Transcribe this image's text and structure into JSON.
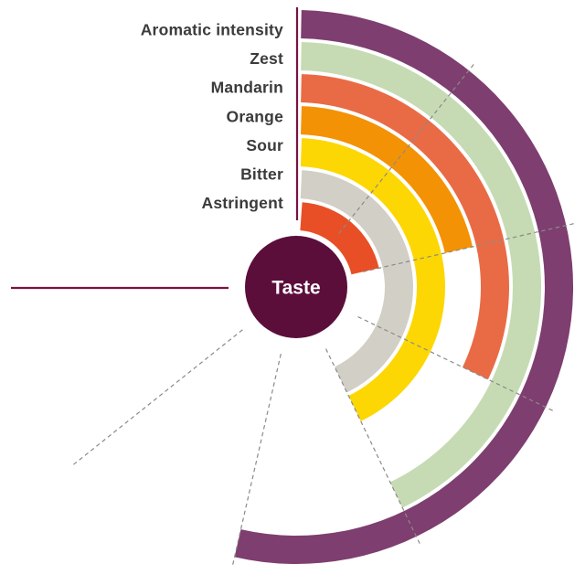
{
  "chart_data": {
    "type": "bar",
    "subtype": "radial-bar",
    "title": "",
    "center_label": "Taste",
    "categories": [
      "Aromatic intensity",
      "Zest",
      "Mandarin",
      "Orange",
      "Sour",
      "Bitter",
      "Astringent"
    ],
    "values": [
      5,
      4,
      3,
      2,
      4,
      4,
      2
    ],
    "ring_colors": [
      "#7E3E6F",
      "#C6DBB4",
      "#E96B45",
      "#F39204",
      "#FDD703",
      "#D2CFC6",
      "#E84F27"
    ],
    "scale": {
      "min": 0,
      "max": 7,
      "max_angle_deg": 270,
      "direction": "clockwise",
      "start_position": "top",
      "gridline_values": [
        1,
        2,
        3,
        4,
        5,
        6
      ],
      "grid_on": true
    },
    "layout_hints": {
      "rings_order": "outermost-to-innermost matches categories top-to-bottom",
      "legend_position": "top-left, right-aligned label column"
    },
    "colors": {
      "hub_fill": "#5C0E3B",
      "hub_text": "#FFFFFF",
      "axis_line": "#7A1243",
      "gridline": "#8A8A8A",
      "label_text": "#3B3B3B",
      "background": "#FFFFFF"
    }
  }
}
